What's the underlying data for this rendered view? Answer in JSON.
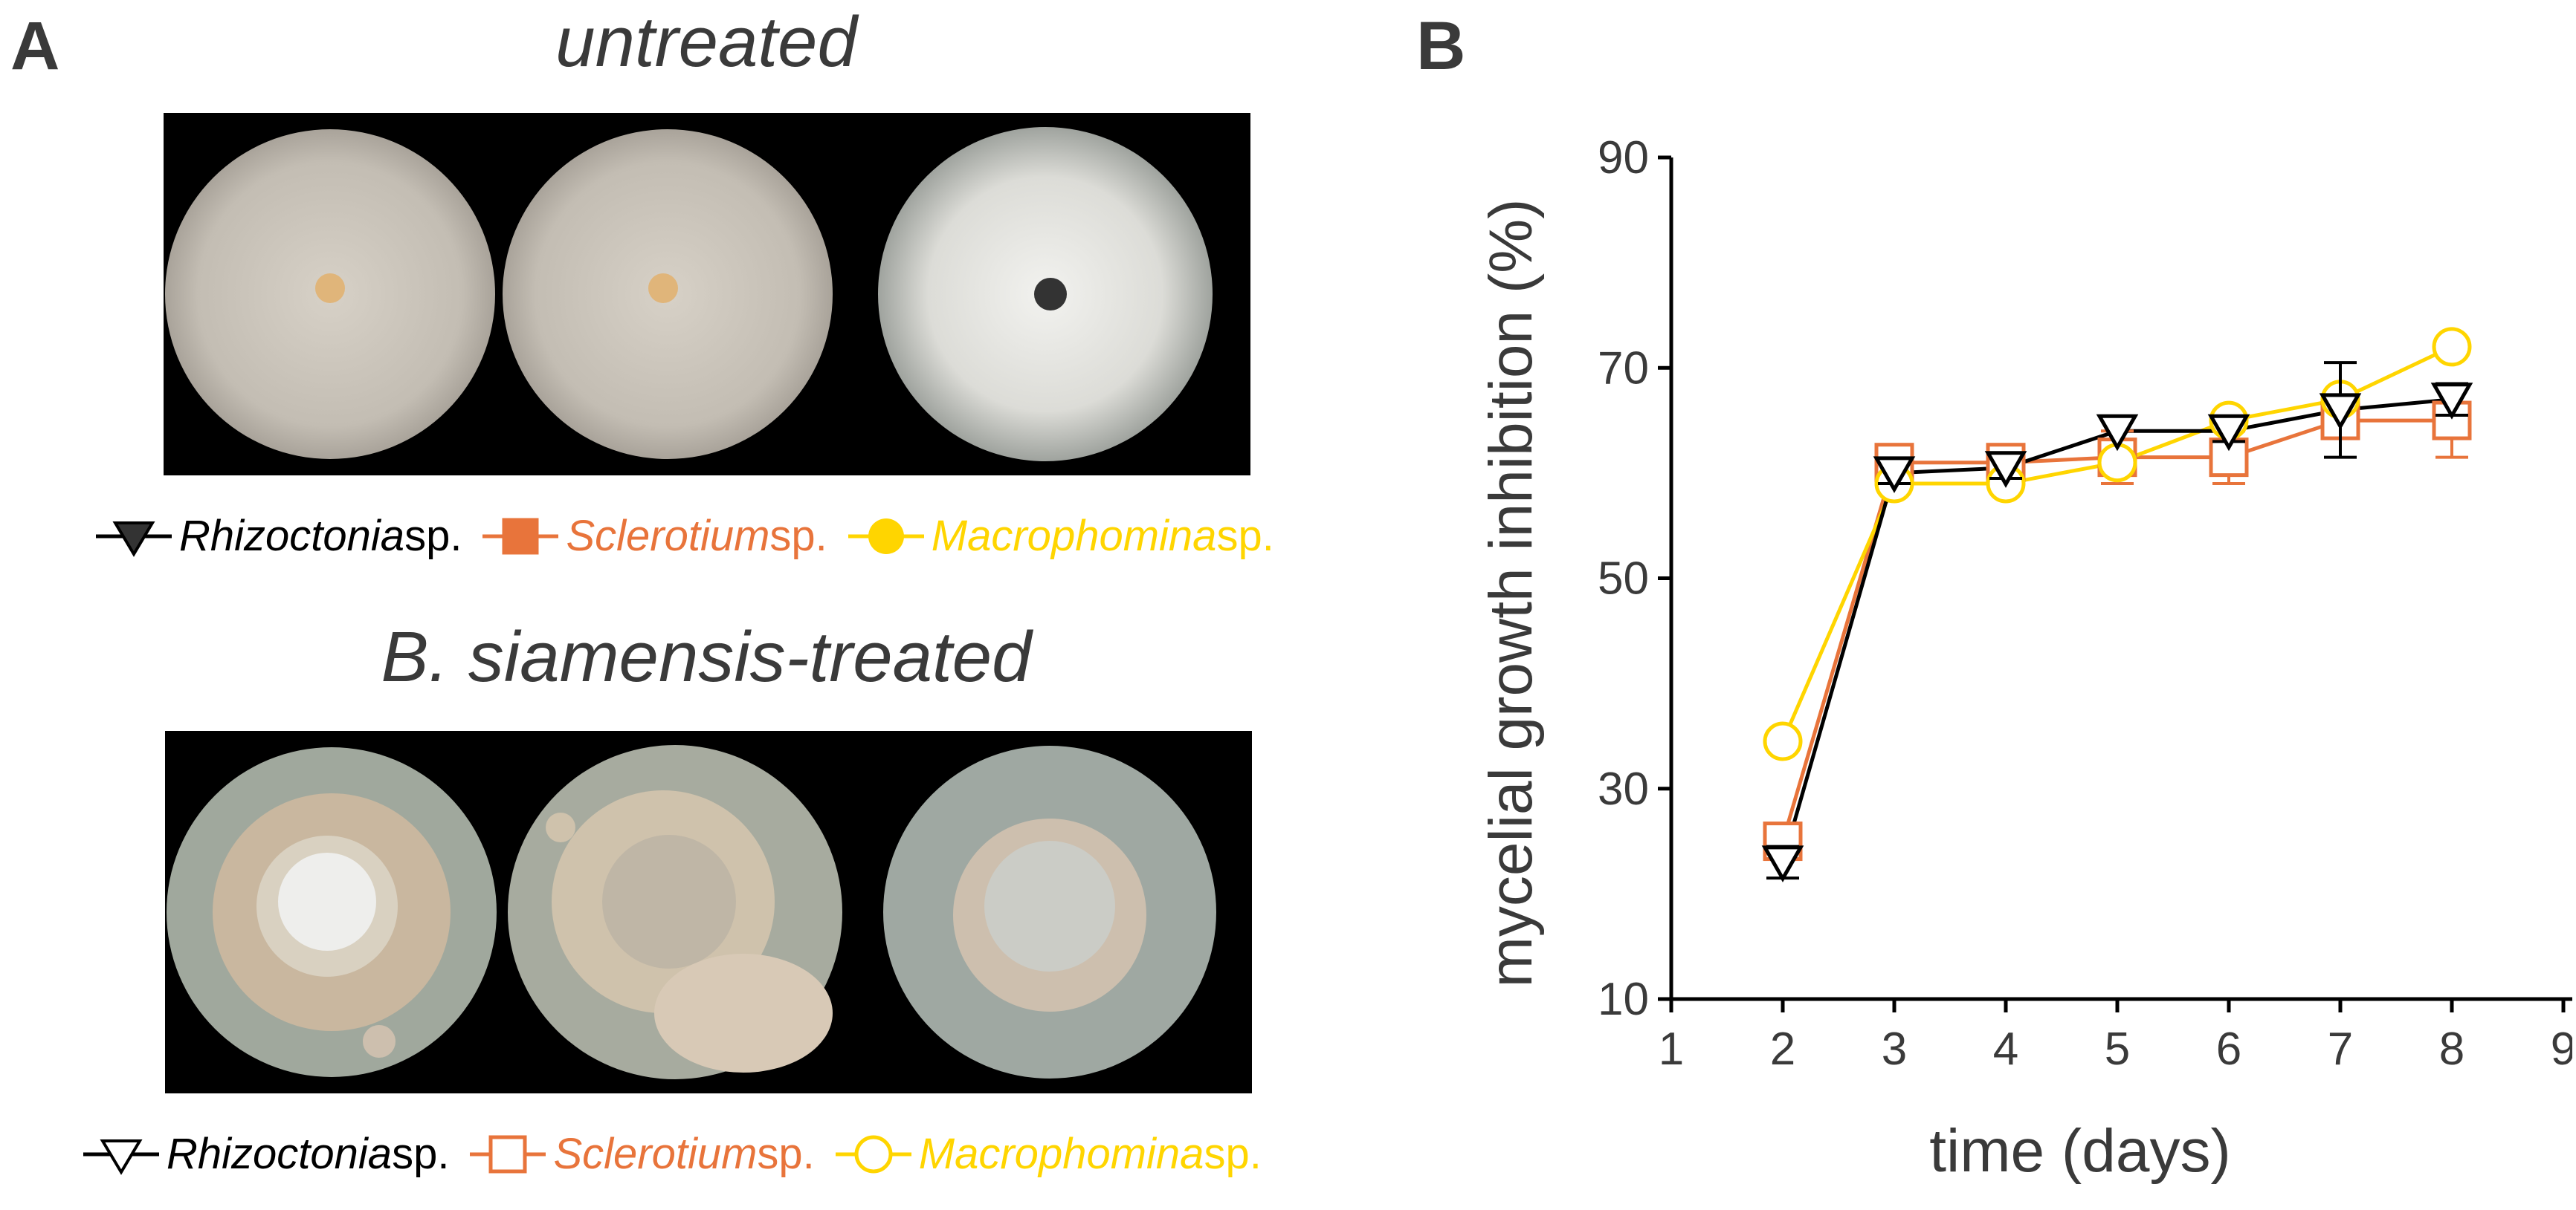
{
  "panel_a": {
    "letter": "A",
    "untreated_title": "untreated",
    "treated_title": "B. siamensis-treated",
    "legend_untreated": [
      {
        "genus": "Rhizoctonia",
        "suffix": " sp.",
        "color": "#000000",
        "marker": "triangle-down-filled"
      },
      {
        "genus": "Sclerotium",
        "suffix": " sp.",
        "color": "#E8743B",
        "marker": "square-filled"
      },
      {
        "genus": "Macrophomina",
        "suffix": " sp.",
        "color": "#FFD500",
        "marker": "circle-filled"
      }
    ],
    "legend_treated": [
      {
        "genus": "Rhizoctonia",
        "suffix": " sp.",
        "color": "#000000",
        "marker": "triangle-down-open"
      },
      {
        "genus": "Sclerotium",
        "suffix": " sp.",
        "color": "#E8743B",
        "marker": "square-open"
      },
      {
        "genus": "Macrophomina",
        "suffix": " sp.",
        "color": "#FFD500",
        "marker": "circle-open"
      }
    ]
  },
  "panel_b": {
    "letter": "B"
  },
  "chart_data": {
    "type": "line",
    "xlabel": "time (days)",
    "ylabel": "mycelial growth inhibition (%)",
    "xlim": [
      1,
      9
    ],
    "ylim": [
      10,
      90
    ],
    "xticks": [
      1,
      2,
      3,
      4,
      5,
      6,
      7,
      8,
      9
    ],
    "yticks": [
      10,
      30,
      50,
      70,
      90
    ],
    "x": [
      2,
      3,
      4,
      5,
      6,
      7,
      8
    ],
    "series": [
      {
        "name": "Rhizoctonia sp.",
        "color": "#000000",
        "marker": "triangle-down-open",
        "values": [
          23,
          60,
          60.5,
          64,
          64,
          66,
          67
        ],
        "error": [
          1.5,
          1,
          1,
          0.5,
          1,
          4.5,
          1.5
        ]
      },
      {
        "name": "Sclerotium sp.",
        "color": "#E8743B",
        "marker": "square-open",
        "values": [
          25,
          61,
          61,
          61.5,
          61.5,
          65,
          65
        ],
        "error": [
          0.5,
          0.5,
          0.5,
          2.5,
          2.5,
          0.5,
          3.5
        ]
      },
      {
        "name": "Macrophomina sp.",
        "color": "#FFD500",
        "marker": "circle-open",
        "values": [
          34.5,
          59,
          59,
          61,
          65,
          67,
          72
        ],
        "error": [
          0.5,
          0.5,
          0.5,
          0.5,
          0.5,
          0.5,
          0.5
        ]
      }
    ]
  }
}
